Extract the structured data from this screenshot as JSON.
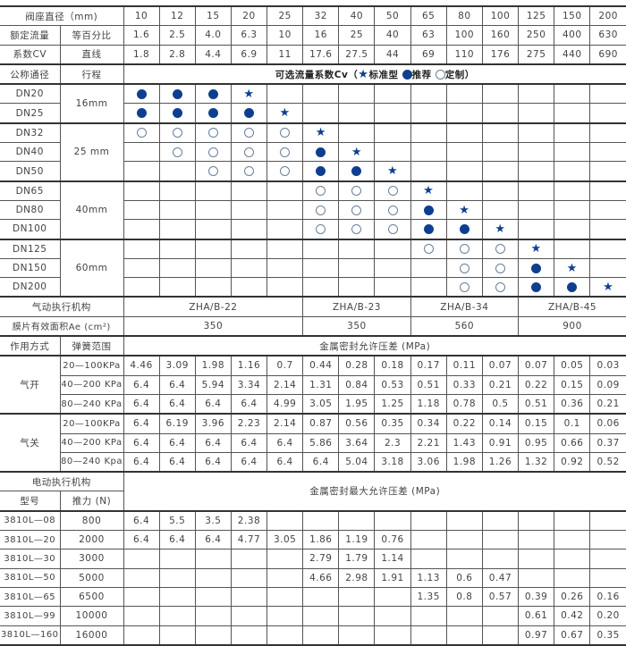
{
  "colors": {
    "symbol_blue": "#0e3f8f",
    "hollow_outline": "#6a7f9a"
  },
  "header": {
    "seat_label": "阀座直径（mm)",
    "sizes": [
      "10",
      "12",
      "15",
      "20",
      "25",
      "32",
      "40",
      "50",
      "65",
      "80",
      "100",
      "125",
      "150",
      "200"
    ],
    "rated_label": "额定流量",
    "cv_label": "系数CV",
    "equal_pct_label": "等百分比",
    "linear_label": "直线",
    "equal_pct": [
      "1.6",
      "2.5",
      "4.0",
      "6.3",
      "10",
      "16",
      "25",
      "40",
      "63",
      "100",
      "160",
      "250",
      "400",
      "630"
    ],
    "linear": [
      "1.8",
      "2.8",
      "4.4",
      "6.9",
      "11",
      "17.6",
      "27.5",
      "44",
      "69",
      "110",
      "176",
      "275",
      "440",
      "690"
    ]
  },
  "legend": {
    "nominal_label": "公称通径",
    "stroke_label": "行程",
    "title": "可选流量系数Cv（",
    "star_label": "标准型",
    "filled_label": "推荐",
    "hollow_label": "定制",
    "close": "）",
    "symbols": {
      "S": "star-icon",
      "R": "filled-circle-icon",
      "C": "hollow-circle-icon"
    }
  },
  "dn_rows": [
    {
      "dn": "DN20",
      "stroke": "16mm",
      "span": 2,
      "cells": [
        "R",
        "R",
        "R",
        "S",
        "",
        "",
        "",
        "",
        "",
        "",
        "",
        "",
        "",
        ""
      ]
    },
    {
      "dn": "DN25",
      "cells": [
        "R",
        "R",
        "R",
        "R",
        "S",
        "",
        "",
        "",
        "",
        "",
        "",
        "",
        "",
        ""
      ]
    },
    {
      "dn": "DN32",
      "stroke": "25 mm",
      "span": 3,
      "cells": [
        "C",
        "C",
        "C",
        "C",
        "C",
        "S",
        "",
        "",
        "",
        "",
        "",
        "",
        "",
        ""
      ]
    },
    {
      "dn": "DN40",
      "cells": [
        "",
        "C",
        "C",
        "C",
        "C",
        "R",
        "S",
        "",
        "",
        "",
        "",
        "",
        "",
        ""
      ]
    },
    {
      "dn": "DN50",
      "cells": [
        "",
        "",
        "C",
        "C",
        "C",
        "R",
        "R",
        "S",
        "",
        "",
        "",
        "",
        "",
        ""
      ]
    },
    {
      "dn": "DN65",
      "stroke": "40mm",
      "span": 3,
      "cells": [
        "",
        "",
        "",
        "",
        "",
        "C",
        "C",
        "C",
        "S",
        "",
        "",
        "",
        "",
        ""
      ]
    },
    {
      "dn": "DN80",
      "cells": [
        "",
        "",
        "",
        "",
        "",
        "C",
        "C",
        "C",
        "R",
        "S",
        "",
        "",
        "",
        ""
      ]
    },
    {
      "dn": "DN100",
      "cells": [
        "",
        "",
        "",
        "",
        "",
        "C",
        "C",
        "C",
        "R",
        "R",
        "S",
        "",
        "",
        ""
      ]
    },
    {
      "dn": "DN125",
      "stroke": "60mm",
      "span": 3,
      "cells": [
        "",
        "",
        "",
        "",
        "",
        "",
        "",
        "",
        "C",
        "C",
        "C",
        "S",
        "",
        ""
      ]
    },
    {
      "dn": "DN150",
      "cells": [
        "",
        "",
        "",
        "",
        "",
        "",
        "",
        "",
        "",
        "C",
        "C",
        "R",
        "S",
        ""
      ]
    },
    {
      "dn": "DN200",
      "cells": [
        "",
        "",
        "",
        "",
        "",
        "",
        "",
        "",
        "",
        "C",
        "C",
        "R",
        "R",
        "S"
      ]
    }
  ],
  "pneumatic": {
    "label": "气动执行机构",
    "area_label": "膜片有效面积Ae (cm²)",
    "models": [
      {
        "name": "ZHA/B-22",
        "area": "350",
        "span": 5
      },
      {
        "name": "ZHA/B-23",
        "area": "350",
        "span": 3
      },
      {
        "name": "ZHA/B-34",
        "area": "560",
        "span": 3
      },
      {
        "name": "ZHA/B-45",
        "area": "900",
        "span": 3
      }
    ],
    "action_label": "作用方式",
    "spring_label": "弹簧范围",
    "dp_title": "金属密封允许压差 (MPa)",
    "groups": [
      {
        "name": "气开",
        "rows": [
          {
            "spring": "20—100KPa",
            "values": [
              "4.46",
              "3.09",
              "1.98",
              "1.16",
              "0.7",
              "0.44",
              "0.28",
              "0.18",
              "0.17",
              "0.11",
              "0.07",
              "0.07",
              "0.05",
              "0.03"
            ]
          },
          {
            "spring": "40—200 KPa",
            "values": [
              "6.4",
              "6.4",
              "5.94",
              "3.34",
              "2.14",
              "1.31",
              "0.84",
              "0.53",
              "0.51",
              "0.33",
              "0.21",
              "0.22",
              "0.15",
              "0.09"
            ]
          },
          {
            "spring": "80—240 KPa",
            "values": [
              "6.4",
              "6.4",
              "6.4",
              "6.4",
              "4.99",
              "3.05",
              "1.95",
              "1.25",
              "1.18",
              "0.78",
              "0.5",
              "0.51",
              "0.36",
              "0.21"
            ]
          }
        ]
      },
      {
        "name": "气关",
        "rows": [
          {
            "spring": "20—100KPa",
            "values": [
              "6.4",
              "6.19",
              "3.96",
              "2.23",
              "2.14",
              "0.87",
              "0.56",
              "0.35",
              "0.34",
              "0.22",
              "0.14",
              "0.15",
              "0.1",
              "0.06"
            ]
          },
          {
            "spring": "40—200 KPa",
            "values": [
              "6.4",
              "6.4",
              "6.4",
              "6.4",
              "6.4",
              "5.86",
              "3.64",
              "2.3",
              "2.21",
              "1.43",
              "0.91",
              "0.95",
              "0.66",
              "0.37"
            ]
          },
          {
            "spring": "80—240 Kpa",
            "values": [
              "6.4",
              "6.4",
              "6.4",
              "6.4",
              "6.4",
              "6.4",
              "5.04",
              "3.18",
              "3.06",
              "1.98",
              "1.26",
              "1.32",
              "0.92",
              "0.52"
            ]
          }
        ]
      }
    ]
  },
  "electric": {
    "label": "电动执行机构",
    "model_label": "型号",
    "thrust_label": "推力 (N)",
    "dp_title": "金属密封最大允许压差 (MPa)",
    "rows": [
      {
        "model": "3810L—08",
        "thrust": "800",
        "values": [
          "6.4",
          "5.5",
          "3.5",
          "2.38",
          "",
          "",
          "",
          "",
          "",
          "",
          "",
          "",
          "",
          ""
        ]
      },
      {
        "model": "3810L—20",
        "thrust": "2000",
        "values": [
          "6.4",
          "6.4",
          "6.4",
          "4.77",
          "3.05",
          "1.86",
          "1.19",
          "0.76",
          "",
          "",
          "",
          "",
          "",
          ""
        ]
      },
      {
        "model": "3810L—30",
        "thrust": "3000",
        "values": [
          "",
          "",
          "",
          "",
          "",
          "2.79",
          "1.79",
          "1.14",
          "",
          "",
          "",
          "",
          "",
          ""
        ]
      },
      {
        "model": "3810L—50",
        "thrust": "5000",
        "values": [
          "",
          "",
          "",
          "",
          "",
          "4.66",
          "2.98",
          "1.91",
          "1.13",
          "0.6",
          "0.47",
          "",
          "",
          ""
        ]
      },
      {
        "model": "3810L—65",
        "thrust": "6500",
        "values": [
          "",
          "",
          "",
          "",
          "",
          "",
          "",
          "",
          "1.35",
          "0.8",
          "0.57",
          "0.39",
          "0.26",
          "0.16"
        ]
      },
      {
        "model": "3810L—99",
        "thrust": "10000",
        "values": [
          "",
          "",
          "",
          "",
          "",
          "",
          "",
          "",
          "",
          "",
          "",
          "0.61",
          "0.42",
          "0.20"
        ]
      },
      {
        "model": "3810L—160",
        "thrust": "16000",
        "values": [
          "",
          "",
          "",
          "",
          "",
          "",
          "",
          "",
          "",
          "",
          "",
          "0.97",
          "0.67",
          "0.35"
        ]
      }
    ]
  }
}
